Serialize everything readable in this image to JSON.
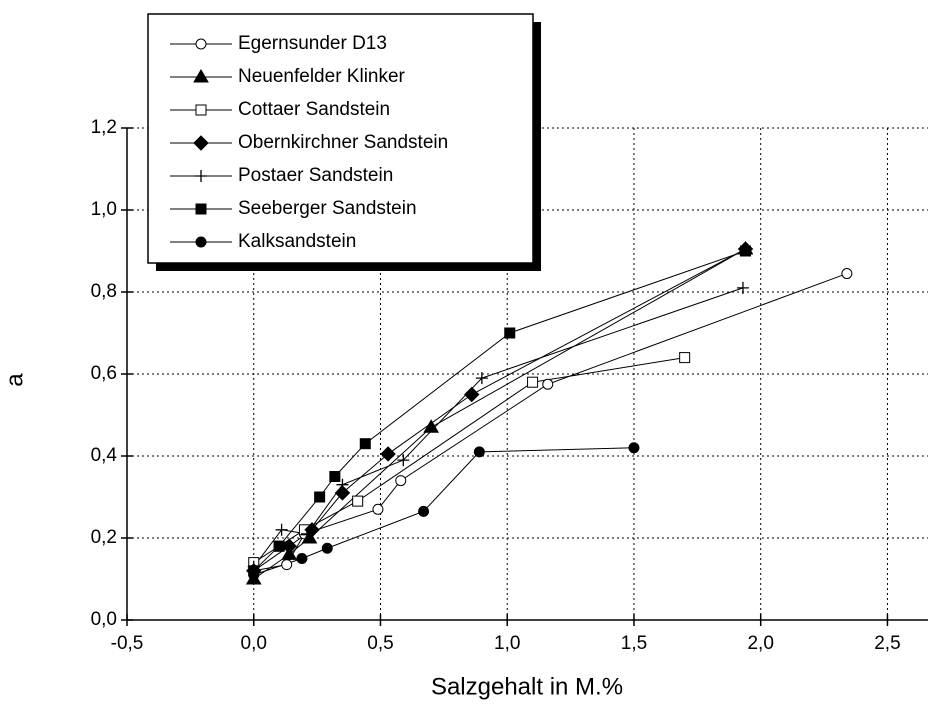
{
  "chart_data": {
    "type": "scatter-line",
    "x_label": "Salzgehalt in M.%",
    "y_label": "a",
    "xlim": [
      -0.5,
      2.66
    ],
    "ylim": [
      0,
      1.2
    ],
    "xticks": [
      {
        "value": -0.5,
        "label": "-0,5"
      },
      {
        "value": 0,
        "label": "0,0"
      },
      {
        "value": 0.5,
        "label": "0,5"
      },
      {
        "value": 1,
        "label": "1,0"
      },
      {
        "value": 1.5,
        "label": "1,5"
      },
      {
        "value": 2,
        "label": "2,0"
      },
      {
        "value": 2.5,
        "label": "2,5"
      }
    ],
    "yticks": [
      {
        "value": 0,
        "label": "0,0"
      },
      {
        "value": 0.2,
        "label": "0,2"
      },
      {
        "value": 0.4,
        "label": "0,4"
      },
      {
        "value": 0.6,
        "label": "0,6"
      },
      {
        "value": 0.8,
        "label": "0,8"
      },
      {
        "value": 1,
        "label": "1,0"
      },
      {
        "value": 1.2,
        "label": "1,2"
      }
    ],
    "grid": true,
    "legend": "upper left",
    "series": [
      {
        "name": "Egernsunder D13",
        "color": "#000000",
        "marker": "circle-open",
        "x": [
          0,
          0.13,
          0.2,
          0.49,
          0.58,
          1.16,
          2.34
        ],
        "values": [
          0.12,
          0.135,
          0.21,
          0.27,
          0.34,
          0.575,
          0.845
        ]
      },
      {
        "name": "Neuenfelder Klinker",
        "color": "#000000",
        "marker": "triangle",
        "x": [
          0,
          0.14,
          0.22,
          0.7,
          1.94
        ],
        "values": [
          0.1,
          0.16,
          0.2,
          0.47,
          0.905
        ]
      },
      {
        "name": "Cottaer Sandstein",
        "color": "#000000",
        "marker": "square-open",
        "x": [
          0,
          0.1,
          0.2,
          0.41,
          1.1,
          1.7
        ],
        "values": [
          0.14,
          0.18,
          0.22,
          0.29,
          0.58,
          0.64
        ]
      },
      {
        "name": "Obernkirchner Sandstein",
        "color": "#000000",
        "marker": "diamond",
        "x": [
          0,
          0.14,
          0.23,
          0.35,
          0.53,
          0.86,
          1.94
        ],
        "values": [
          0.12,
          0.18,
          0.22,
          0.31,
          0.405,
          0.55,
          0.905
        ]
      },
      {
        "name": "Postaer Sandstein",
        "color": "#000000",
        "marker": "plus",
        "x": [
          0,
          0.11,
          0.21,
          0.35,
          0.59,
          0.9,
          1.93
        ],
        "values": [
          0.13,
          0.22,
          0.21,
          0.33,
          0.39,
          0.59,
          0.81
        ]
      },
      {
        "name": "Seeberger Sandstein",
        "color": "#000000",
        "marker": "square",
        "x": [
          0,
          0.1,
          0.26,
          0.32,
          0.44,
          1.01,
          1.94
        ],
        "values": [
          0.12,
          0.18,
          0.3,
          0.35,
          0.43,
          0.7,
          0.9
        ]
      },
      {
        "name": "Kalksandstein",
        "color": "#000000",
        "marker": "circle",
        "x": [
          0,
          0.19,
          0.29,
          0.67,
          0.89,
          1.5
        ],
        "values": [
          0.11,
          0.15,
          0.175,
          0.265,
          0.41,
          0.42
        ]
      }
    ]
  }
}
